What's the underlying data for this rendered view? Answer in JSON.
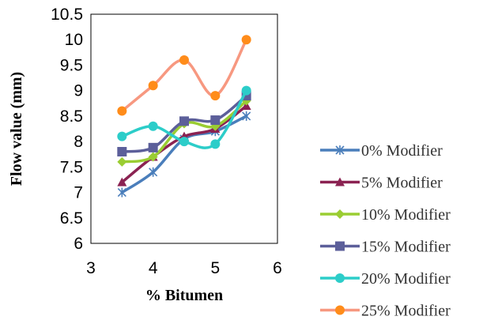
{
  "chart_data": {
    "type": "line",
    "title": "",
    "xlabel": "% Bitumen",
    "ylabel": "Flow value (mm)",
    "xlim": [
      3,
      6
    ],
    "ylim": [
      6,
      10.5
    ],
    "x_ticks": [
      "3",
      "4",
      "5",
      "6"
    ],
    "y_ticks": [
      "6",
      "6.5",
      "7",
      "7.5",
      "8",
      "8.5",
      "9",
      "9.5",
      "10",
      "10.5"
    ],
    "x": [
      3.5,
      4,
      4.5,
      5,
      5.5
    ],
    "smoothed": true,
    "grid": false,
    "legend_position": "right",
    "series": [
      {
        "name": "0% Modifier",
        "values": [
          7.0,
          7.4,
          8.05,
          8.2,
          8.5
        ],
        "color": "#4a7ebb",
        "marker": "asterisk"
      },
      {
        "name": "5% Modifier",
        "values": [
          7.2,
          7.7,
          8.1,
          8.25,
          8.7
        ],
        "color": "#8b2252",
        "marker": "triangle"
      },
      {
        "name": "10% Modifier",
        "values": [
          7.6,
          7.7,
          8.35,
          8.3,
          8.8
        ],
        "color": "#9acd32",
        "marker": "diamond"
      },
      {
        "name": "15% Modifier",
        "values": [
          7.8,
          7.88,
          8.4,
          8.42,
          8.9
        ],
        "color": "#5c5f9a",
        "marker": "square"
      },
      {
        "name": "20% Modifier",
        "values": [
          8.1,
          8.3,
          8.0,
          7.95,
          9.0
        ],
        "color": "#2ccdc9",
        "marker": "circle"
      },
      {
        "name": "25% Modifier",
        "values": [
          8.6,
          9.1,
          9.6,
          8.9,
          10.0
        ],
        "color": "#f79880",
        "marker": "circle-orange"
      }
    ],
    "marker_colors": {
      "circle-orange": "#ff8c1a"
    }
  }
}
